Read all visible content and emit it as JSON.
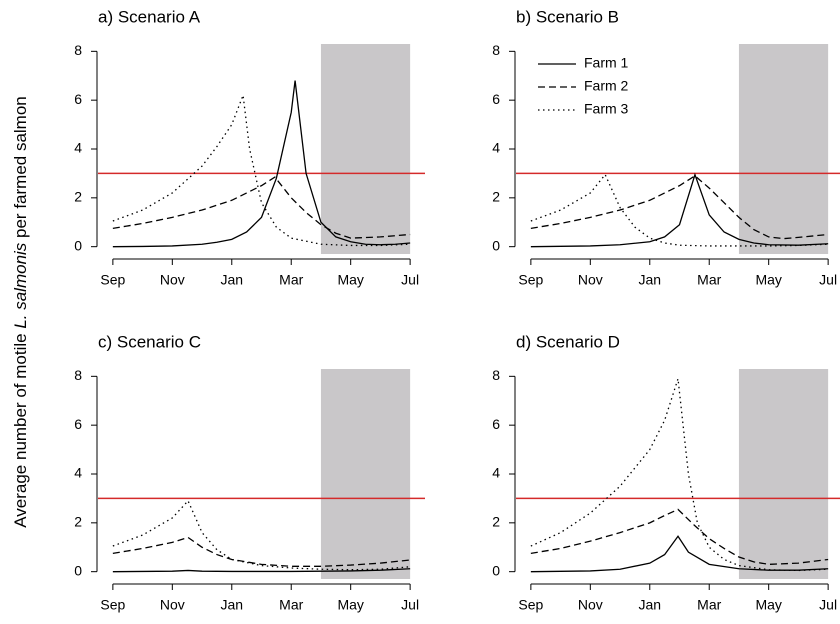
{
  "ylabel": {
    "before": "Average number of motile ",
    "italic": "L. salmonis",
    "after": " per farmed salmon"
  },
  "chart_data": [
    {
      "type": "line",
      "title": "a) Scenario A",
      "xlim": [
        -0.5,
        10.5
      ],
      "ylim": [
        -0.3,
        8.3
      ],
      "xticks": [
        {
          "value": 0,
          "label": "Sep"
        },
        {
          "value": 2,
          "label": "Nov"
        },
        {
          "value": 4,
          "label": "Jan"
        },
        {
          "value": 6,
          "label": "Mar"
        },
        {
          "value": 8,
          "label": "May"
        },
        {
          "value": 10,
          "label": "Jul"
        }
      ],
      "yticks": [
        0,
        2,
        4,
        6,
        8
      ],
      "hline": 3,
      "hline_color": "#d42a2a",
      "shaded": [
        7,
        10
      ],
      "shade_color": "#c9c7c9",
      "legend": false,
      "series": [
        {
          "name": "Farm 1",
          "color": "#000000",
          "linestyle": "solid",
          "x": [
            0,
            1,
            2,
            3,
            3.5,
            4,
            4.5,
            5,
            5.5,
            6,
            6.13,
            6.5,
            7,
            7.5,
            8,
            8.5,
            9,
            9.5,
            10
          ],
          "values": [
            0,
            0.01,
            0.03,
            0.1,
            0.18,
            0.3,
            0.6,
            1.2,
            2.8,
            5.5,
            6.8,
            3.0,
            1.0,
            0.4,
            0.2,
            0.1,
            0.08,
            0.1,
            0.15
          ]
        },
        {
          "name": "Farm 2",
          "color": "#000000",
          "linestyle": "dashed",
          "x": [
            0,
            1,
            2,
            3,
            4,
            5,
            5.45,
            6,
            6.5,
            7,
            7.5,
            8,
            9,
            10
          ],
          "values": [
            0.75,
            0.95,
            1.2,
            1.5,
            1.9,
            2.5,
            2.85,
            2.0,
            1.4,
            0.9,
            0.55,
            0.35,
            0.4,
            0.5
          ]
        },
        {
          "name": "Farm 3",
          "color": "#000000",
          "linestyle": "dotted",
          "x": [
            0,
            1,
            2,
            3,
            3.5,
            4,
            4.38,
            4.6,
            5,
            5.5,
            6,
            7,
            8,
            9,
            10
          ],
          "values": [
            1.05,
            1.5,
            2.2,
            3.3,
            4.1,
            5.0,
            6.2,
            4.0,
            1.8,
            0.8,
            0.35,
            0.1,
            0.05,
            0.05,
            0.1
          ]
        }
      ]
    },
    {
      "type": "line",
      "title": "b) Scenario B",
      "xlim": [
        -0.5,
        10.5
      ],
      "ylim": [
        -0.3,
        8.3
      ],
      "xticks": [
        {
          "value": 0,
          "label": "Sep"
        },
        {
          "value": 2,
          "label": "Nov"
        },
        {
          "value": 4,
          "label": "Jan"
        },
        {
          "value": 6,
          "label": "Mar"
        },
        {
          "value": 8,
          "label": "May"
        },
        {
          "value": 10,
          "label": "Jul"
        }
      ],
      "yticks": [
        0,
        2,
        4,
        6,
        8
      ],
      "hline": 3,
      "hline_color": "#d42a2a",
      "shaded": [
        7,
        10
      ],
      "shade_color": "#c9c7c9",
      "legend": true,
      "series": [
        {
          "name": "Farm 1",
          "color": "#000000",
          "linestyle": "solid",
          "x": [
            0,
            2,
            3,
            4,
            4.5,
            5,
            5.52,
            6,
            6.5,
            7,
            7.5,
            8,
            9,
            10
          ],
          "values": [
            0,
            0.03,
            0.08,
            0.2,
            0.4,
            0.9,
            2.95,
            1.3,
            0.6,
            0.3,
            0.15,
            0.08,
            0.06,
            0.12
          ]
        },
        {
          "name": "Farm 2",
          "color": "#000000",
          "linestyle": "dashed",
          "x": [
            0,
            1,
            2,
            3,
            4,
            5,
            5.52,
            6,
            6.5,
            7,
            7.5,
            8,
            8.5,
            9,
            10
          ],
          "values": [
            0.75,
            0.95,
            1.2,
            1.5,
            1.9,
            2.5,
            2.9,
            2.4,
            1.8,
            1.2,
            0.7,
            0.4,
            0.33,
            0.38,
            0.5
          ]
        },
        {
          "name": "Farm 3",
          "color": "#000000",
          "linestyle": "dotted",
          "x": [
            0,
            1,
            2,
            2.5,
            3,
            3.5,
            4,
            4.5,
            5,
            6,
            7,
            8,
            9,
            10
          ],
          "values": [
            1.05,
            1.5,
            2.2,
            2.95,
            1.6,
            0.8,
            0.35,
            0.15,
            0.06,
            0.03,
            0.03,
            0.03,
            0.05,
            0.1
          ]
        }
      ]
    },
    {
      "type": "line",
      "title": "c) Scenario C",
      "xlim": [
        -0.5,
        10.5
      ],
      "ylim": [
        -0.3,
        8.3
      ],
      "xticks": [
        {
          "value": 0,
          "label": "Sep"
        },
        {
          "value": 2,
          "label": "Nov"
        },
        {
          "value": 4,
          "label": "Jan"
        },
        {
          "value": 6,
          "label": "Mar"
        },
        {
          "value": 8,
          "label": "May"
        },
        {
          "value": 10,
          "label": "Jul"
        }
      ],
      "yticks": [
        0,
        2,
        4,
        6,
        8
      ],
      "hline": 3,
      "hline_color": "#d42a2a",
      "shaded": [
        7,
        10
      ],
      "shade_color": "#c9c7c9",
      "legend": false,
      "series": [
        {
          "name": "Farm 1",
          "color": "#000000",
          "linestyle": "solid",
          "x": [
            0,
            2,
            2.53,
            3,
            4,
            6,
            8,
            9,
            10
          ],
          "values": [
            0,
            0.02,
            0.05,
            0.02,
            0.01,
            0.01,
            0.03,
            0.06,
            0.12
          ]
        },
        {
          "name": "Farm 2",
          "color": "#000000",
          "linestyle": "dashed",
          "x": [
            0,
            1,
            2,
            2.53,
            3,
            3.5,
            4,
            5,
            6,
            7,
            8,
            9,
            10
          ],
          "values": [
            0.75,
            0.95,
            1.2,
            1.4,
            1.0,
            0.7,
            0.5,
            0.3,
            0.22,
            0.22,
            0.27,
            0.35,
            0.48
          ]
        },
        {
          "name": "Farm 3",
          "color": "#000000",
          "linestyle": "dotted",
          "x": [
            0,
            1,
            2,
            2.53,
            3,
            3.5,
            4,
            5,
            6,
            7,
            8,
            9,
            10
          ],
          "values": [
            1.05,
            1.5,
            2.2,
            2.9,
            1.6,
            0.9,
            0.5,
            0.25,
            0.15,
            0.1,
            0.08,
            0.1,
            0.2
          ]
        }
      ]
    },
    {
      "type": "line",
      "title": "d) Scenario D",
      "xlim": [
        -0.5,
        10.5
      ],
      "ylim": [
        -0.3,
        8.3
      ],
      "xticks": [
        {
          "value": 0,
          "label": "Sep"
        },
        {
          "value": 2,
          "label": "Nov"
        },
        {
          "value": 4,
          "label": "Jan"
        },
        {
          "value": 6,
          "label": "Mar"
        },
        {
          "value": 8,
          "label": "May"
        },
        {
          "value": 10,
          "label": "Jul"
        }
      ],
      "yticks": [
        0,
        2,
        4,
        6,
        8
      ],
      "hline": 3,
      "hline_color": "#d42a2a",
      "shaded": [
        7,
        10
      ],
      "shade_color": "#c9c7c9",
      "legend": false,
      "series": [
        {
          "name": "Farm 1",
          "color": "#000000",
          "linestyle": "solid",
          "x": [
            0,
            2,
            3,
            4,
            4.5,
            4.95,
            5.3,
            6,
            7,
            8,
            9,
            10
          ],
          "values": [
            0,
            0.03,
            0.1,
            0.35,
            0.7,
            1.45,
            0.8,
            0.3,
            0.12,
            0.06,
            0.06,
            0.12
          ]
        },
        {
          "name": "Farm 2",
          "color": "#000000",
          "linestyle": "dashed",
          "x": [
            0,
            1,
            2,
            3,
            4,
            4.5,
            4.95,
            5.5,
            6,
            6.5,
            7,
            7.5,
            8,
            9,
            10
          ],
          "values": [
            0.75,
            0.95,
            1.25,
            1.6,
            2.0,
            2.3,
            2.55,
            1.9,
            1.35,
            0.95,
            0.6,
            0.4,
            0.3,
            0.35,
            0.5
          ]
        },
        {
          "name": "Farm 3",
          "color": "#000000",
          "linestyle": "dotted",
          "x": [
            0,
            1,
            2,
            3,
            4,
            4.5,
            4.95,
            5.3,
            5.6,
            6,
            6.5,
            7,
            8,
            9,
            10
          ],
          "values": [
            1.05,
            1.6,
            2.4,
            3.5,
            5.0,
            6.2,
            7.9,
            4.0,
            2.0,
            1.0,
            0.5,
            0.25,
            0.08,
            0.05,
            0.1
          ]
        }
      ]
    }
  ]
}
